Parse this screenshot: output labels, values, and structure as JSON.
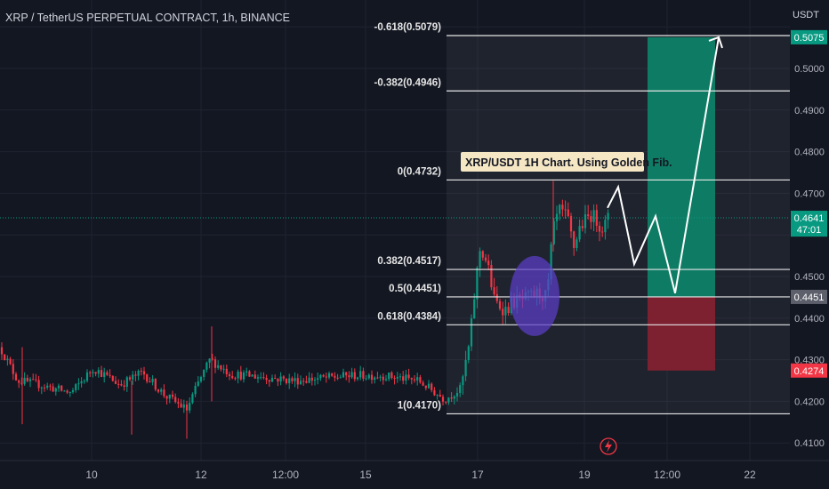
{
  "header": {
    "title": "XRP / TetherUS PERPETUAL CONTRACT, 1h, BINANCE"
  },
  "chart_data": {
    "type": "candlestick",
    "currency": "USDT",
    "ylim": [
      0.407,
      0.5135
    ],
    "y_ticks": [
      "0.5000",
      "0.4900",
      "0.4800",
      "0.4700",
      "0.4500",
      "0.4400",
      "0.4300",
      "0.4200",
      "0.4100"
    ],
    "x_ticks": [
      "10",
      "12",
      "12:00",
      "15",
      "17",
      "19",
      "12:00",
      "22"
    ],
    "fib_levels": [
      {
        "label": "-0.618(0.5079)",
        "value": 0.5079
      },
      {
        "label": "-0.382(0.4946)",
        "value": 0.4946
      },
      {
        "label": "0(0.4732)",
        "value": 0.4732
      },
      {
        "label": "0.382(0.4517)",
        "value": 0.4517
      },
      {
        "label": "0.5(0.4451)",
        "value": 0.4451
      },
      {
        "label": "0.618(0.4384)",
        "value": 0.4384
      },
      {
        "label": "1(0.4170)",
        "value": 0.417
      }
    ],
    "annotation": "XRP/USDT 1H Chart. Using Golden Fib.",
    "position": {
      "entry": 0.4451,
      "target": 0.5075,
      "stop": 0.4274
    },
    "price_badges": [
      {
        "text": "0.5075",
        "value": 0.5075,
        "color": "#089981"
      },
      {
        "text": "0.4641",
        "value": 0.4641,
        "color": "#089981"
      },
      {
        "text": "47:01",
        "value": 0.4613,
        "color": "#089981"
      },
      {
        "text": "0.4451",
        "value": 0.4451,
        "color": "#5d606b"
      },
      {
        "text": "0.4274",
        "value": 0.4274,
        "color": "#f23645"
      }
    ],
    "current_price": 0.4641,
    "projected_path": [
      0.4665,
      0.4715,
      0.453,
      0.4645,
      0.446,
      0.5075
    ],
    "colors": {
      "up": "#089981",
      "down": "#f23645",
      "profit_zone": "#0e7c64",
      "loss_zone": "#7d2130",
      "highlight": "#5b3ec8",
      "label_bg": "#f5e6c4"
    }
  }
}
